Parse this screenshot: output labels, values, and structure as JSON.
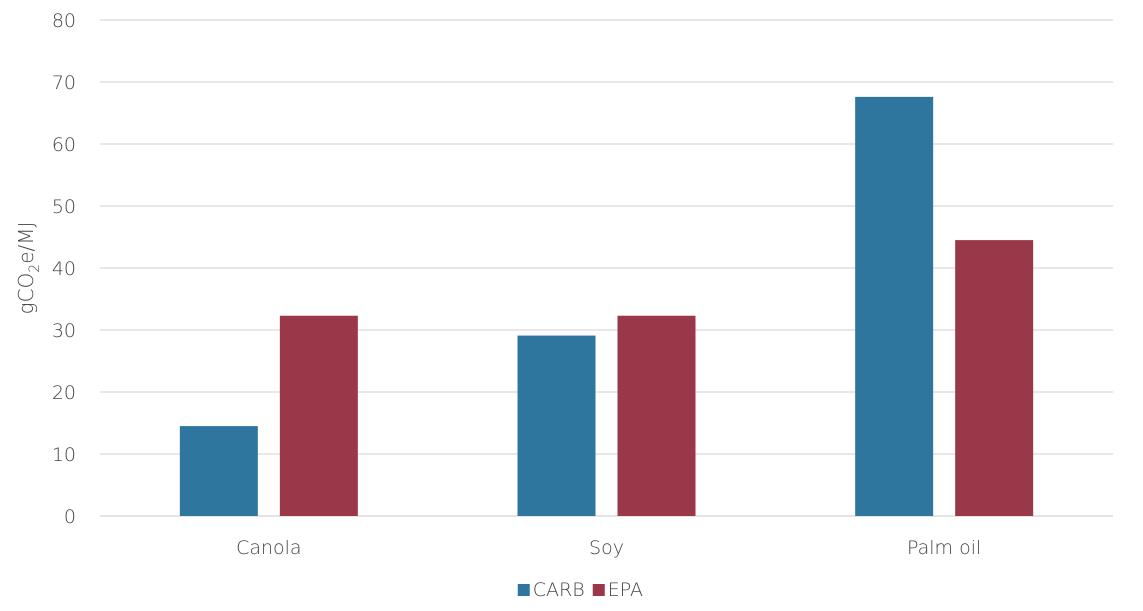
{
  "chart_data": {
    "type": "bar",
    "categories": [
      "Canola",
      "Soy",
      "Palm oil"
    ],
    "series": [
      {
        "name": "CARB",
        "values": [
          14.5,
          29.1,
          67.6
        ],
        "color": "#2e769e"
      },
      {
        "name": "EPA",
        "values": [
          32.3,
          32.3,
          44.5
        ],
        "color": "#9a3748"
      }
    ],
    "ylim": [
      0,
      80
    ],
    "yticks": [
      0,
      10,
      20,
      30,
      40,
      50,
      60,
      70,
      80
    ],
    "ylabel": {
      "prefix": "gCO",
      "subscript": "2",
      "suffix": "e/MJ"
    },
    "xlabel": "",
    "title": "",
    "grid": true,
    "legend_position": "bottom",
    "gridline_color": "#d9d9d9"
  }
}
